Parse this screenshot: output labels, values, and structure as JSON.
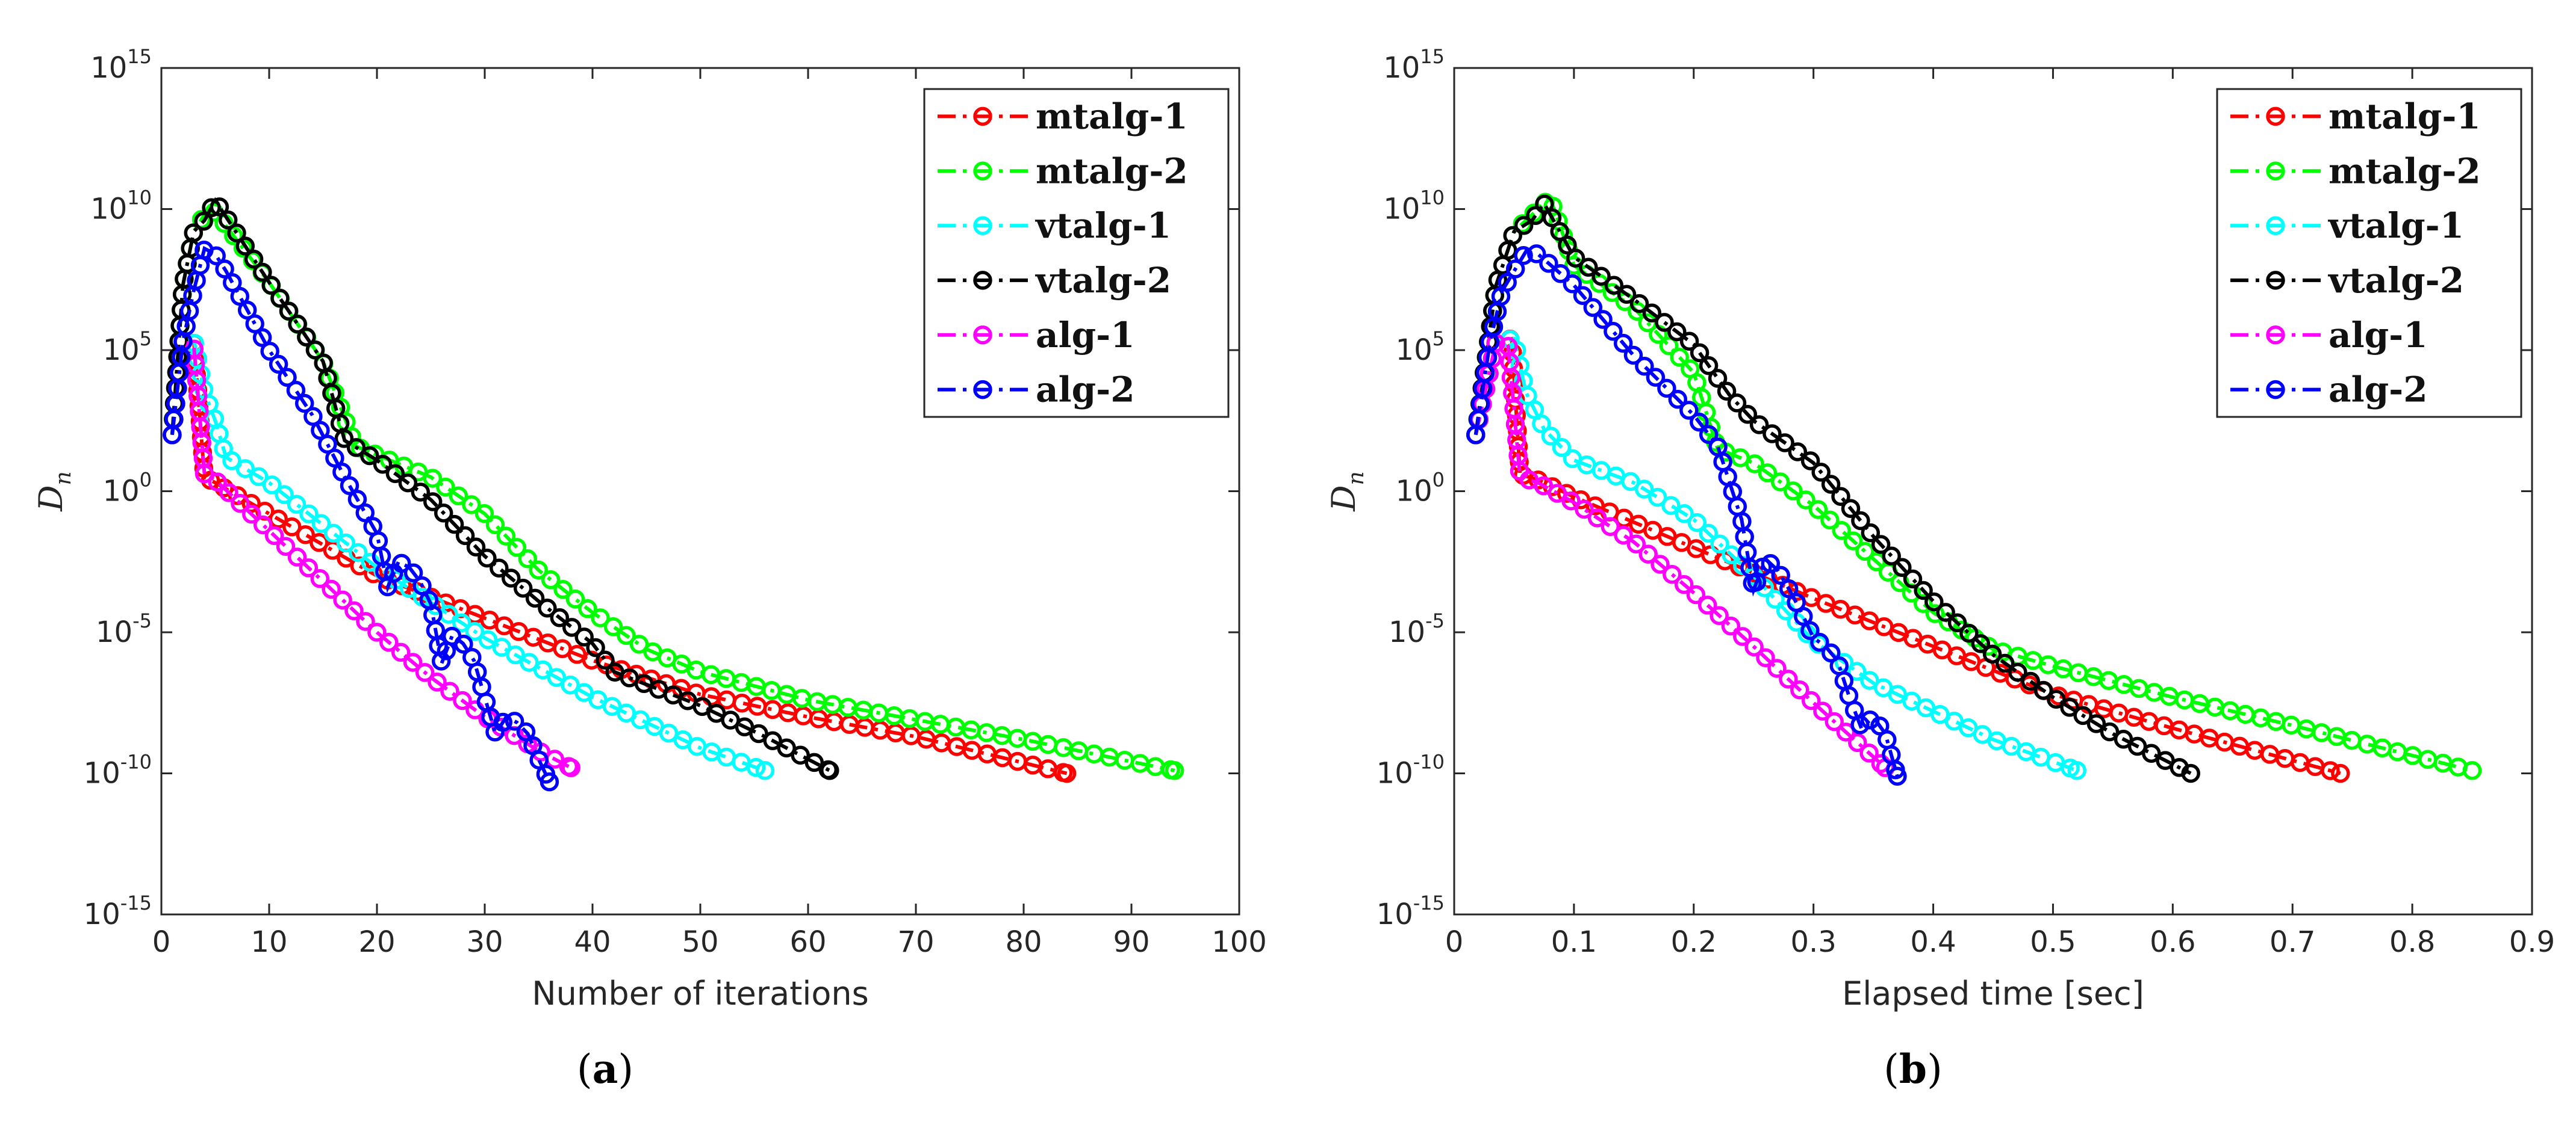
{
  "chart_data": [
    {
      "type": "line",
      "panel": "a",
      "caption_letter": "a",
      "xlabel": "Number of iterations",
      "ylabel": "D",
      "ylabel_sub": "n",
      "yscale": "log",
      "xlim": [
        0,
        100
      ],
      "ylim_exp": [
        -15,
        15
      ],
      "x_ticks": [
        0,
        10,
        20,
        30,
        40,
        50,
        60,
        70,
        80,
        90,
        100
      ],
      "y_tick_exponents": [
        -15,
        -10,
        -5,
        0,
        5,
        10,
        15
      ],
      "legend_position": "top-right",
      "series": [
        {
          "name": "mtalg-1",
          "color": "#ff0000",
          "points": [
            [
              1,
              2
            ],
            [
              2,
              5.3
            ],
            [
              3,
              5.4
            ],
            [
              4,
              0.5
            ],
            [
              5,
              0.3
            ],
            [
              20,
              -3
            ],
            [
              30,
              -4.5
            ],
            [
              40,
              -6
            ],
            [
              50,
              -7.2
            ],
            [
              60,
              -8
            ],
            [
              70,
              -8.7
            ],
            [
              84,
              -10
            ]
          ]
        },
        {
          "name": "mtalg-2",
          "color": "#00ff00",
          "points": [
            [
              1,
              2
            ],
            [
              2,
              7.3
            ],
            [
              3,
              9.2
            ],
            [
              4,
              9.8
            ],
            [
              5,
              9.9
            ],
            [
              10,
              7.4
            ],
            [
              15,
              4.6
            ],
            [
              18,
              1.6
            ],
            [
              25,
              0.5
            ],
            [
              30,
              -0.8
            ],
            [
              35,
              -2.8
            ],
            [
              40,
              -4.3
            ],
            [
              45,
              -5.6
            ],
            [
              50,
              -6.4
            ],
            [
              60,
              -7.4
            ],
            [
              70,
              -8.1
            ],
            [
              80,
              -8.8
            ],
            [
              94,
              -9.9
            ]
          ]
        },
        {
          "name": "vtalg-1",
          "color": "#00ffff",
          "points": [
            [
              1,
              2
            ],
            [
              2,
              5.3
            ],
            [
              3,
              5.4
            ],
            [
              4,
              3.5
            ],
            [
              5,
              2.5
            ],
            [
              6,
              1.2
            ],
            [
              10,
              0.3
            ],
            [
              20,
              -2.7
            ],
            [
              30,
              -5.2
            ],
            [
              40,
              -7.3
            ],
            [
              50,
              -9.1
            ],
            [
              56,
              -9.9
            ]
          ]
        },
        {
          "name": "vtalg-2",
          "color": "#000000",
          "points": [
            [
              1,
              2
            ],
            [
              2,
              7.3
            ],
            [
              3,
              9.2
            ],
            [
              4,
              9.6
            ],
            [
              5,
              10.3
            ],
            [
              10,
              7.4
            ],
            [
              15,
              4.6
            ],
            [
              17,
              1.8
            ],
            [
              20,
              1.1
            ],
            [
              25,
              -0.3
            ],
            [
              30,
              -2.3
            ],
            [
              35,
              -3.9
            ],
            [
              40,
              -5.4
            ],
            [
              42,
              -6.4
            ],
            [
              50,
              -7.6
            ],
            [
              56,
              -8.7
            ],
            [
              62,
              -9.9
            ]
          ]
        },
        {
          "name": "alg-1",
          "color": "#ff00ff",
          "points": [
            [
              1,
              2
            ],
            [
              2,
              5.3
            ],
            [
              3,
              5.2
            ],
            [
              4,
              0.6
            ],
            [
              5,
              0.4
            ],
            [
              10,
              -1.4
            ],
            [
              15,
              -3.2
            ],
            [
              20,
              -5
            ],
            [
              25,
              -6.6
            ],
            [
              30,
              -8
            ],
            [
              35,
              -9.2
            ],
            [
              38,
              -9.8
            ]
          ]
        },
        {
          "name": "alg-2",
          "color": "#0000ff",
          "points": [
            [
              1,
              2
            ],
            [
              2,
              5.3
            ],
            [
              3,
              7.1
            ],
            [
              4,
              8.6
            ],
            [
              5,
              8.4
            ],
            [
              6,
              7.8
            ],
            [
              10,
              5
            ],
            [
              14,
              2.7
            ],
            [
              17,
              0.5
            ],
            [
              20,
              -1.5
            ],
            [
              21,
              -3.4
            ],
            [
              22,
              -2.5
            ],
            [
              23,
              -2.7
            ],
            [
              24,
              -3.2
            ],
            [
              25,
              -4
            ],
            [
              26,
              -6.1
            ],
            [
              27,
              -5.1
            ],
            [
              28,
              -5.4
            ],
            [
              29,
              -6
            ],
            [
              30,
              -7.3
            ],
            [
              31,
              -8.6
            ],
            [
              32,
              -8
            ],
            [
              33,
              -8.2
            ],
            [
              34,
              -8.6
            ],
            [
              35,
              -9.5
            ],
            [
              36,
              -10.3
            ]
          ]
        }
      ]
    },
    {
      "type": "line",
      "panel": "b",
      "caption_letter": "b",
      "xlabel": "Elapsed time [sec]",
      "ylabel": "D",
      "ylabel_sub": "n",
      "yscale": "log",
      "xlim": [
        0,
        0.9
      ],
      "ylim_exp": [
        -15,
        15
      ],
      "x_ticks": [
        0,
        0.1,
        0.2,
        0.3,
        0.4,
        0.5,
        0.6,
        0.7,
        0.8,
        0.9
      ],
      "y_tick_exponents": [
        -15,
        -10,
        -5,
        0,
        5,
        10,
        15
      ],
      "legend_position": "top-right",
      "series": [
        {
          "name": "mtalg-1",
          "color": "#ff0000",
          "points": [
            [
              0.018,
              2
            ],
            [
              0.035,
              5.3
            ],
            [
              0.048,
              5.4
            ],
            [
              0.055,
              0.6
            ],
            [
              0.07,
              0.4
            ],
            [
              0.1,
              -0.2
            ],
            [
              0.2,
              -2
            ],
            [
              0.3,
              -3.8
            ],
            [
              0.4,
              -5.5
            ],
            [
              0.5,
              -7.2
            ],
            [
              0.6,
              -8.4
            ],
            [
              0.74,
              -10
            ]
          ]
        },
        {
          "name": "mtalg-2",
          "color": "#00ff00",
          "points": [
            [
              0.018,
              2
            ],
            [
              0.035,
              7.3
            ],
            [
              0.05,
              9.2
            ],
            [
              0.065,
              9.8
            ],
            [
              0.08,
              10.4
            ],
            [
              0.1,
              8
            ],
            [
              0.15,
              6.5
            ],
            [
              0.2,
              4.2
            ],
            [
              0.22,
              1.5
            ],
            [
              0.25,
              1
            ],
            [
              0.3,
              -0.5
            ],
            [
              0.35,
              -2.4
            ],
            [
              0.4,
              -4.3
            ],
            [
              0.45,
              -5.6
            ],
            [
              0.5,
              -6.2
            ],
            [
              0.6,
              -7.3
            ],
            [
              0.7,
              -8.3
            ],
            [
              0.85,
              -9.9
            ]
          ]
        },
        {
          "name": "vtalg-1",
          "color": "#00ffff",
          "points": [
            [
              0.018,
              2
            ],
            [
              0.035,
              5.3
            ],
            [
              0.05,
              5.4
            ],
            [
              0.06,
              3.5
            ],
            [
              0.075,
              2.2
            ],
            [
              0.1,
              1.1
            ],
            [
              0.15,
              0.3
            ],
            [
              0.2,
              -1
            ],
            [
              0.25,
              -3
            ],
            [
              0.3,
              -5.3
            ],
            [
              0.35,
              -6.8
            ],
            [
              0.4,
              -7.8
            ],
            [
              0.45,
              -8.8
            ],
            [
              0.52,
              -9.9
            ]
          ]
        },
        {
          "name": "vtalg-2",
          "color": "#000000",
          "points": [
            [
              0.018,
              2
            ],
            [
              0.035,
              7.3
            ],
            [
              0.05,
              9.2
            ],
            [
              0.065,
              9.6
            ],
            [
              0.075,
              10.2
            ],
            [
              0.1,
              8.3
            ],
            [
              0.15,
              6.8
            ],
            [
              0.2,
              5.2
            ],
            [
              0.23,
              3.4
            ],
            [
              0.25,
              2.5
            ],
            [
              0.3,
              1
            ],
            [
              0.35,
              -1.6
            ],
            [
              0.4,
              -3.9
            ],
            [
              0.45,
              -5.8
            ],
            [
              0.5,
              -7.3
            ],
            [
              0.55,
              -8.6
            ],
            [
              0.615,
              -10
            ]
          ]
        },
        {
          "name": "alg-1",
          "color": "#ff00ff",
          "points": [
            [
              0.018,
              2
            ],
            [
              0.035,
              5.3
            ],
            [
              0.045,
              5.2
            ],
            [
              0.055,
              0.5
            ],
            [
              0.07,
              0.3
            ],
            [
              0.1,
              -0.4
            ],
            [
              0.15,
              -1.8
            ],
            [
              0.2,
              -3.6
            ],
            [
              0.25,
              -5.5
            ],
            [
              0.3,
              -7.5
            ],
            [
              0.36,
              -9.8
            ]
          ]
        },
        {
          "name": "alg-2",
          "color": "#0000ff",
          "points": [
            [
              0.018,
              2
            ],
            [
              0.03,
              5.3
            ],
            [
              0.04,
              7.1
            ],
            [
              0.06,
              8.5
            ],
            [
              0.07,
              8.4
            ],
            [
              0.1,
              7.3
            ],
            [
              0.15,
              4.8
            ],
            [
              0.2,
              2.7
            ],
            [
              0.22,
              1.6
            ],
            [
              0.24,
              -1
            ],
            [
              0.25,
              -3.5
            ],
            [
              0.26,
              -2.4
            ],
            [
              0.27,
              -2.8
            ],
            [
              0.28,
              -3.5
            ],
            [
              0.29,
              -4.3
            ],
            [
              0.3,
              -5.2
            ],
            [
              0.31,
              -5.5
            ],
            [
              0.32,
              -6
            ],
            [
              0.33,
              -7.3
            ],
            [
              0.34,
              -8.4
            ],
            [
              0.35,
              -8
            ],
            [
              0.36,
              -8.6
            ],
            [
              0.37,
              -10.1
            ]
          ]
        }
      ]
    }
  ]
}
